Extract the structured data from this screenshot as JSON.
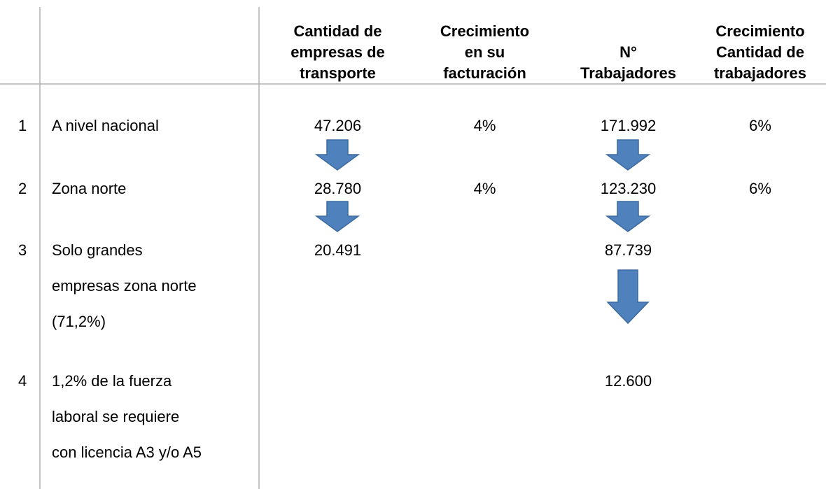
{
  "table": {
    "header": [
      [
        "Cantidad de",
        "empresas de",
        "transporte"
      ],
      [
        "Crecimiento",
        "en su",
        "facturación"
      ],
      [
        "N°",
        "Trabajadores"
      ],
      [
        "Crecimiento",
        "Cantidad de",
        "trabajadores"
      ]
    ],
    "rows": [
      {
        "index": "1",
        "label": [
          "A nivel nacional"
        ],
        "values": [
          "47.206",
          "4%",
          "171.992",
          "6%"
        ]
      },
      {
        "index": "2",
        "label": [
          "Zona norte"
        ],
        "values": [
          "28.780",
          "4%",
          "123.230",
          "6%"
        ]
      },
      {
        "index": "3",
        "label": [
          "Solo grandes",
          "empresas zona norte",
          "(71,2%)"
        ],
        "values": [
          "20.491",
          null,
          "87.739",
          null
        ]
      },
      {
        "index": "4",
        "label": [
          "1,2% de la fuerza",
          "laboral se requiere",
          "con licencia A3 y/o A5"
        ],
        "values": [
          null,
          null,
          "12.600",
          null
        ]
      }
    ]
  }
}
